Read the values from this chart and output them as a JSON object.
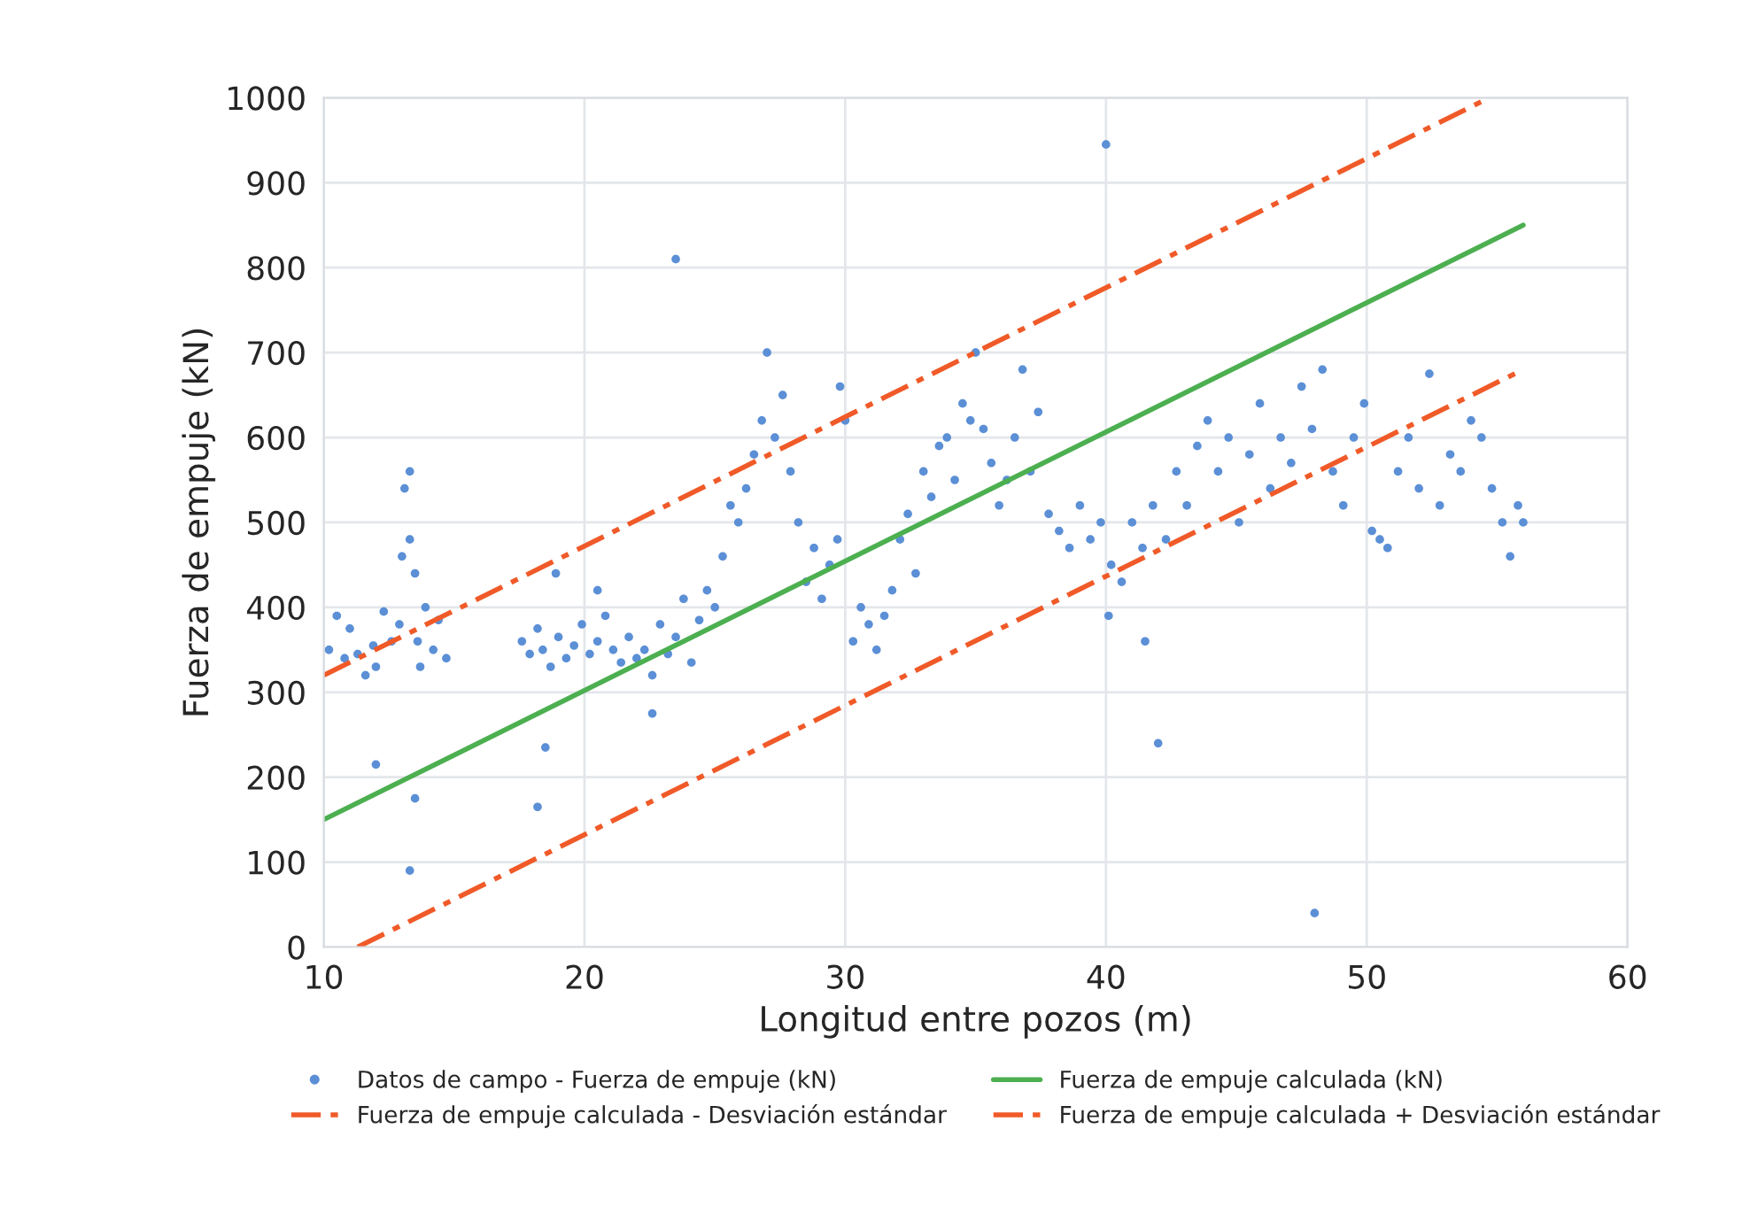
{
  "chart_data": {
    "type": "scatter",
    "xlabel": "Longitud entre pozos (m)",
    "ylabel": "Fuerza de empuje (kN)",
    "xlim": [
      10,
      60
    ],
    "xticks": [
      10,
      20,
      30,
      40,
      50,
      60
    ],
    "ylim": [
      0,
      1000
    ],
    "yticks": [
      0,
      100,
      200,
      300,
      400,
      500,
      600,
      700,
      800,
      900,
      1000
    ],
    "grid": true,
    "legend": "bottom",
    "series": [
      {
        "name": "Datos de campo - Fuerza de empuje (kN)",
        "marker": "circle",
        "color": "#5b8fd6",
        "x": [
          10.2,
          10.5,
          10.8,
          11.0,
          11.3,
          11.6,
          11.9,
          12.0,
          12.3,
          12.6,
          12.9,
          13.0,
          13.1,
          13.3,
          13.3,
          13.5,
          13.6,
          13.7,
          13.9,
          14.2,
          14.4,
          14.7,
          12.0,
          13.5,
          13.3,
          17.6,
          17.9,
          18.2,
          18.4,
          18.7,
          19.0,
          19.3,
          19.6,
          19.9,
          20.2,
          20.5,
          20.8,
          21.1,
          21.4,
          21.7,
          22.0,
          18.2,
          18.5,
          18.9,
          20.5,
          22.3,
          22.6,
          22.9,
          23.2,
          23.5,
          23.8,
          24.1,
          24.4,
          24.7,
          25.0,
          25.3,
          25.6,
          25.9,
          22.6,
          23.5,
          26.2,
          26.5,
          26.8,
          27.0,
          27.3,
          27.6,
          27.9,
          28.2,
          28.5,
          28.8,
          29.1,
          29.4,
          29.7,
          30.0,
          29.8,
          30.3,
          30.6,
          30.9,
          31.2,
          31.5,
          31.8,
          32.1,
          32.4,
          32.7,
          33.0,
          33.3,
          33.6,
          33.9,
          34.2,
          34.5,
          34.8,
          35.0,
          35.3,
          35.6,
          35.9,
          36.2,
          36.5,
          36.8,
          37.1,
          37.4,
          37.8,
          38.2,
          38.6,
          39.0,
          39.4,
          39.8,
          40.2,
          40.6,
          41.0,
          41.4,
          41.8,
          40.0,
          40.1,
          41.5,
          42.0,
          42.3,
          42.7,
          43.1,
          43.5,
          43.9,
          44.3,
          44.7,
          45.1,
          45.5,
          45.9,
          46.3,
          46.7,
          47.1,
          47.5,
          47.9,
          48.0,
          48.3,
          48.7,
          49.1,
          49.5,
          49.9,
          50.2,
          50.5,
          50.8,
          51.2,
          51.6,
          52.0,
          52.4,
          52.8,
          53.2,
          53.6,
          54.0,
          54.4,
          54.8,
          55.2,
          55.5,
          55.8,
          56.0
        ],
        "values": [
          350,
          390,
          340,
          375,
          345,
          320,
          355,
          330,
          395,
          360,
          380,
          460,
          540,
          560,
          480,
          440,
          360,
          330,
          400,
          350,
          385,
          340,
          215,
          175,
          90,
          360,
          345,
          375,
          350,
          330,
          365,
          340,
          355,
          380,
          345,
          360,
          390,
          350,
          335,
          365,
          340,
          165,
          235,
          440,
          420,
          350,
          320,
          380,
          345,
          365,
          410,
          335,
          385,
          420,
          400,
          460,
          520,
          500,
          275,
          810,
          540,
          580,
          620,
          700,
          600,
          650,
          560,
          500,
          430,
          470,
          410,
          450,
          480,
          620,
          660,
          360,
          400,
          380,
          350,
          390,
          420,
          480,
          510,
          440,
          560,
          530,
          590,
          600,
          550,
          640,
          620,
          700,
          610,
          570,
          520,
          550,
          600,
          680,
          560,
          630,
          510,
          490,
          470,
          520,
          480,
          500,
          450,
          430,
          500,
          470,
          520,
          945,
          390,
          360,
          240,
          480,
          560,
          520,
          590,
          620,
          560,
          600,
          500,
          580,
          640,
          540,
          600,
          570,
          660,
          610,
          40,
          680,
          560,
          520,
          600,
          640,
          490,
          480,
          470,
          560,
          600,
          540,
          675,
          520,
          580,
          560,
          620,
          600,
          540,
          500,
          460,
          520,
          500
        ]
      },
      {
        "name": "Fuerza de empuje calculada (kN)",
        "type": "line",
        "color": "#4caf50",
        "line_style": "solid",
        "x": [
          10,
          56
        ],
        "values": [
          150,
          850
        ]
      },
      {
        "name": "Fuerza de empuje calculada - Desviación estándar",
        "type": "line",
        "color": "#f05a28",
        "line_style": "dashed",
        "x": [
          11.3,
          56
        ],
        "values": [
          0,
          680
        ]
      },
      {
        "name": "Fuerza de empuje calculada + Desviación estándar",
        "type": "line",
        "color": "#f05a28",
        "line_style": "dashed",
        "x": [
          10,
          54.7
        ],
        "values": [
          320,
          1000
        ]
      }
    ]
  }
}
